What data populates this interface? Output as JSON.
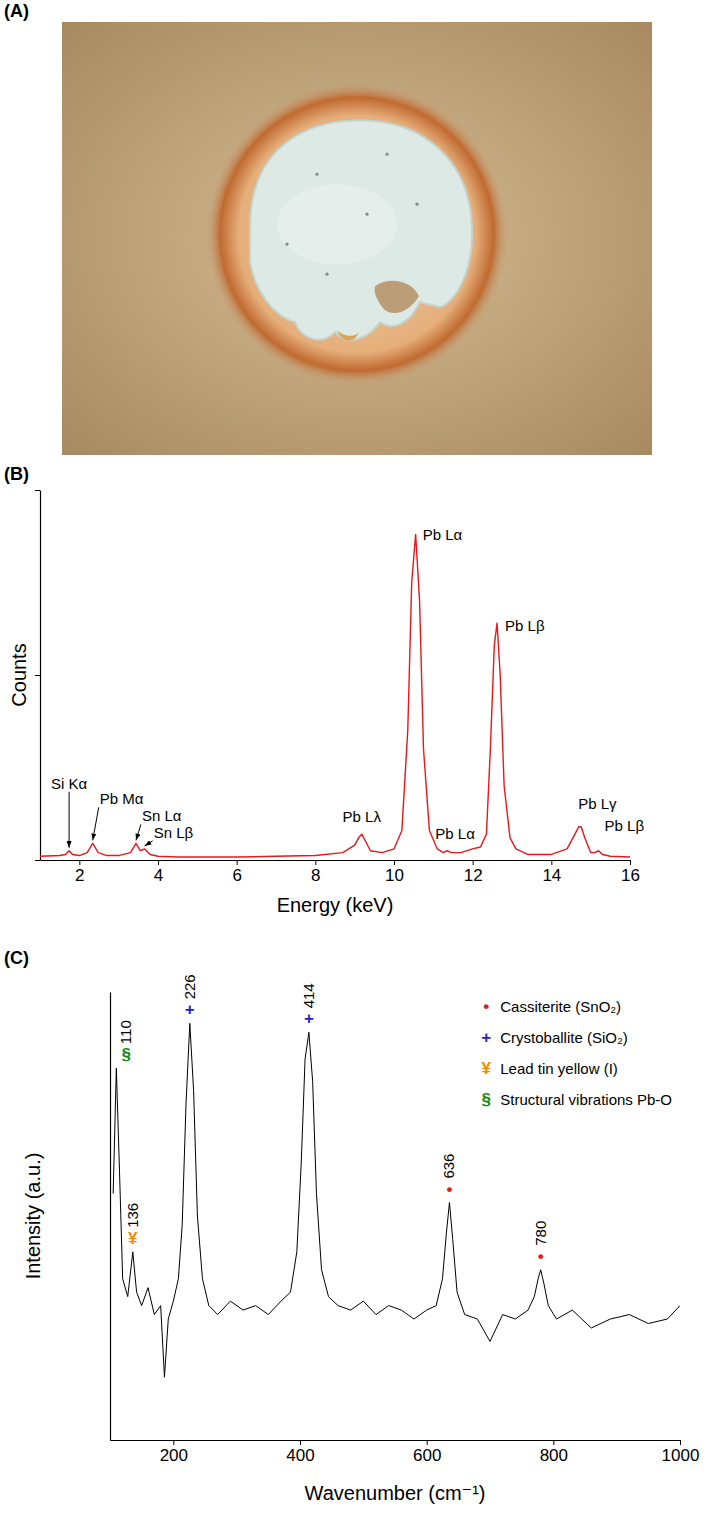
{
  "chart_data": [
    {
      "type": "photo",
      "title": "(A)"
    },
    {
      "type": "line",
      "title": "(B)",
      "xlabel": "Energy (keV)",
      "ylabel": "Counts",
      "x": [
        1.0,
        1.5,
        1.65,
        1.74,
        1.83,
        2.0,
        2.2,
        2.34,
        2.48,
        2.7,
        3.0,
        3.3,
        3.44,
        3.55,
        3.66,
        3.8,
        4.0,
        4.5,
        5,
        6,
        7,
        8,
        8.7,
        9.0,
        9.1,
        9.18,
        9.28,
        9.4,
        9.7,
        10.0,
        10.2,
        10.35,
        10.45,
        10.55,
        10.65,
        10.75,
        10.9,
        11.1,
        11.25,
        11.35,
        11.45,
        11.7,
        12.0,
        12.2,
        12.35,
        12.45,
        12.55,
        12.62,
        12.7,
        12.8,
        12.95,
        13.1,
        13.4,
        14.0,
        14.4,
        14.6,
        14.7,
        14.76,
        14.85,
        15.0,
        15.1,
        15.2,
        15.3,
        15.5,
        16.0
      ],
      "series": [
        {
          "color": "#e31a1c",
          "values": [
            0.01,
            0.012,
            0.015,
            0.025,
            0.015,
            0.012,
            0.02,
            0.045,
            0.02,
            0.012,
            0.012,
            0.02,
            0.045,
            0.025,
            0.03,
            0.015,
            0.01,
            0.008,
            0.008,
            0.008,
            0.01,
            0.012,
            0.02,
            0.04,
            0.06,
            0.07,
            0.05,
            0.025,
            0.02,
            0.03,
            0.08,
            0.35,
            0.75,
            0.88,
            0.7,
            0.3,
            0.08,
            0.03,
            0.02,
            0.025,
            0.02,
            0.02,
            0.03,
            0.035,
            0.07,
            0.3,
            0.58,
            0.64,
            0.5,
            0.2,
            0.06,
            0.03,
            0.015,
            0.015,
            0.03,
            0.07,
            0.09,
            0.09,
            0.06,
            0.02,
            0.02,
            0.025,
            0.015,
            0.01,
            0.008
          ]
        }
      ],
      "xlim": [
        1,
        16
      ],
      "xticks": [
        2,
        4,
        6,
        8,
        10,
        12,
        14,
        16
      ],
      "ylim": [
        0,
        1
      ],
      "yticks": [
        0,
        0.5,
        1
      ],
      "tick_labels": "x",
      "annotations": [
        {
          "text": "Si Kα",
          "x": 1.74,
          "y": 0.025
        },
        {
          "text": "Pb Mα",
          "x": 2.34,
          "y": 0.045
        },
        {
          "text": "Sn Lα",
          "x": 3.44,
          "y": 0.045
        },
        {
          "text": "Sn Lβ",
          "x": 3.66,
          "y": 0.03
        },
        {
          "text": "Pb Lλ",
          "x": 9.18,
          "y": 0.07
        },
        {
          "text": "Pb Lα",
          "x": 10.55,
          "y": 0.88
        },
        {
          "text": "Pb Lα",
          "x": 11.35,
          "y": 0.025
        },
        {
          "text": "Pb Lβ",
          "x": 12.62,
          "y": 0.64
        },
        {
          "text": "Pb Lγ",
          "x": 14.76,
          "y": 0.09
        },
        {
          "text": "Pb Lβ",
          "x": 15.2,
          "y": 0.025
        }
      ]
    },
    {
      "type": "line",
      "title": "(C)",
      "xlabel": "Wavenumber (cm⁻¹)",
      "ylabel": "Intensity (a.u.)",
      "x": [
        105,
        110,
        115,
        120,
        128,
        136,
        142,
        150,
        160,
        170,
        180,
        186,
        192,
        200,
        208,
        214,
        220,
        226,
        232,
        238,
        246,
        256,
        270,
        290,
        310,
        330,
        350,
        370,
        385,
        395,
        402,
        408,
        414,
        420,
        426,
        434,
        445,
        460,
        480,
        500,
        520,
        540,
        560,
        580,
        600,
        615,
        625,
        631,
        636,
        641,
        648,
        660,
        680,
        700,
        720,
        740,
        760,
        770,
        776,
        780,
        785,
        792,
        805,
        830,
        860,
        890,
        920,
        950,
        980,
        1000
      ],
      "series": [
        {
          "color": "#000000",
          "values": [
            0.55,
            0.83,
            0.6,
            0.36,
            0.32,
            0.42,
            0.33,
            0.3,
            0.34,
            0.28,
            0.3,
            0.14,
            0.27,
            0.31,
            0.36,
            0.48,
            0.75,
            0.93,
            0.78,
            0.5,
            0.36,
            0.3,
            0.28,
            0.31,
            0.29,
            0.3,
            0.28,
            0.31,
            0.33,
            0.42,
            0.62,
            0.85,
            0.91,
            0.8,
            0.55,
            0.38,
            0.32,
            0.3,
            0.29,
            0.31,
            0.28,
            0.3,
            0.29,
            0.27,
            0.29,
            0.3,
            0.36,
            0.46,
            0.53,
            0.45,
            0.33,
            0.28,
            0.27,
            0.22,
            0.28,
            0.27,
            0.29,
            0.32,
            0.36,
            0.38,
            0.35,
            0.3,
            0.27,
            0.29,
            0.25,
            0.27,
            0.28,
            0.26,
            0.27,
            0.3
          ]
        }
      ],
      "xlim": [
        100,
        1000
      ],
      "xticks": [
        200,
        400,
        600,
        800,
        1000
      ],
      "ylim": [
        0,
        1
      ],
      "yticks": [],
      "tick_labels": "x",
      "legend": "upper right",
      "legend_entries": [
        {
          "symbol": "•",
          "name": "Cassiterite (SnO₂)",
          "color": "#e31a1c"
        },
        {
          "symbol": "+",
          "name": "Crystoballite (SiO₂)",
          "color": "#1f1fd0"
        },
        {
          "symbol": "¥",
          "name": "Lead tin yellow (I)",
          "color": "#f08c00"
        },
        {
          "symbol": "§",
          "name": "Structural vibrations Pb-O",
          "color": "#168a16"
        }
      ],
      "annotations": [
        {
          "text": "110",
          "x": 110,
          "y": 0.83,
          "symbol": "§",
          "color": "#168a16"
        },
        {
          "text": "136",
          "x": 136,
          "y": 0.42,
          "symbol": "¥",
          "color": "#f08c00"
        },
        {
          "text": "226",
          "x": 226,
          "y": 0.93,
          "symbol": "+",
          "color": "#1f1fd0"
        },
        {
          "text": "414",
          "x": 414,
          "y": 0.91,
          "symbol": "+",
          "color": "#1f1fd0"
        },
        {
          "text": "636",
          "x": 636,
          "y": 0.53,
          "symbol": "•",
          "color": "#e31a1c"
        },
        {
          "text": "780",
          "x": 780,
          "y": 0.38,
          "symbol": "•",
          "color": "#e31a1c"
        }
      ]
    }
  ]
}
